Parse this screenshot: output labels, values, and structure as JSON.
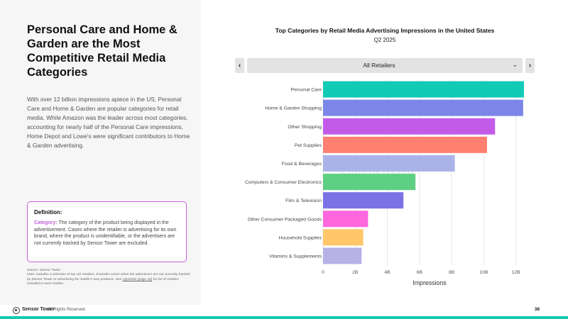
{
  "headline": "Personal Care and Home & Garden are the Most Competitive Retail Media Categories",
  "body": "With over 12 billion impressions apiece in the US, Personal Care and Home & Garden are popular categories for retail media. While Amazon was the leader across most categories, accounting for nearly half of the Personal Care impressions, Home Depot and Lowe's were significant contributors to Home & Garden advertising.",
  "definition": {
    "title": "Definition:",
    "term": "Category:",
    "text": " The category of the product being displayed in the advertisement. Cases where the retailer is advertising for its own brand, where the product is unidentifiable, or the advertisers are not currently tracked by Sensor Tower are excluded."
  },
  "source": {
    "line": "Source: Sensor Tower",
    "note": "Note: Includes a selection of top US retailers. Excludes cases when the advertisers are not currently tracked by Sensor Tower or advertising for retailer's own products. See",
    "link": "Appendix (page 44)",
    "note_end": " for list of retailers included in each market."
  },
  "chart": {
    "title": "Top Categories by Retail Media Advertising Impressions in the United States",
    "subtitle": "Q2 2025",
    "dropdown_value": "All Retailers",
    "prev_icon": "chevron-left-icon",
    "next_icon": "chevron-right-icon",
    "watermark": "SensorTower"
  },
  "chart_data": {
    "type": "bar",
    "orientation": "horizontal",
    "title": "Top Categories by Retail Media Advertising Impressions in the United States",
    "subtitle": "Q2 2025",
    "xlabel": "Impressions",
    "ylabel": "",
    "xlim": [
      0,
      12.5
    ],
    "x_unit": "billions",
    "tick_labels": [
      "0",
      "2B",
      "4B",
      "6B",
      "8B",
      "10B",
      "12B"
    ],
    "tick_values": [
      0,
      2,
      4,
      6,
      8,
      10,
      12
    ],
    "grid": true,
    "categories": [
      "Personal Care",
      "Home & Garden Shopping",
      "Other Shopping",
      "Pet Supplies",
      "Food & Beverages",
      "Computers & Consumer Electronics",
      "Film & Television",
      "Other Consumer Packaged Goods",
      "Household Supplies",
      "Vitamins & Supplements"
    ],
    "values": [
      12.5,
      12.45,
      10.7,
      10.2,
      8.2,
      5.75,
      5.0,
      2.8,
      2.5,
      2.4
    ],
    "colors": [
      "#12cbb6",
      "#7b86e8",
      "#c35be9",
      "#ff8070",
      "#aab3e8",
      "#5fcf83",
      "#7b72e5",
      "#ff67df",
      "#ffc769",
      "#b6b2e6"
    ]
  },
  "footer": {
    "brand": "Sensor Tower",
    "rights": "All Rights Reserved",
    "page": "38"
  }
}
